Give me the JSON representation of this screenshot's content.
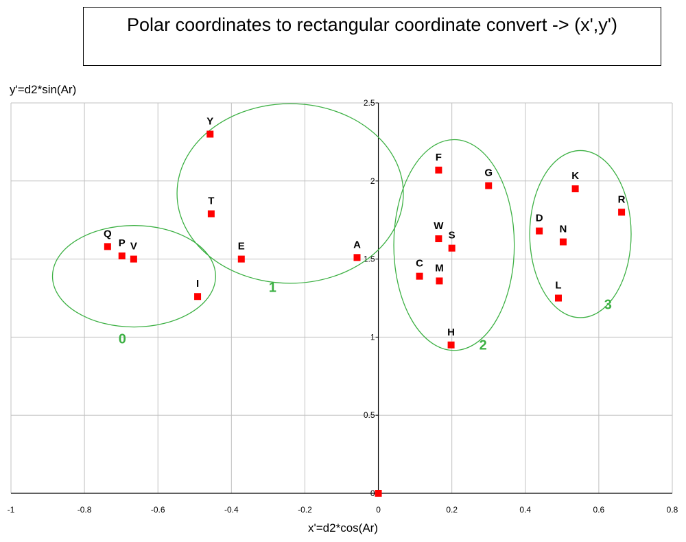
{
  "title": "Polar coordinates to rectangular coordinate convert  -> (x',y')",
  "colors": {
    "point": "#ff0000",
    "cluster": "#3cb043",
    "cluster_label": "#3cb043",
    "grid": "#c0c0c0",
    "axis": "#000000"
  },
  "chart_data": {
    "type": "scatter",
    "xlabel": "x'=d2*cos(Ar)",
    "ylabel": "y'=d2*sin(Ar)",
    "xlim": [
      -1,
      0.8
    ],
    "ylim": [
      0,
      2.5
    ],
    "x_ticks": [
      -1,
      -0.8,
      -0.6,
      -0.4,
      -0.2,
      0,
      0.2,
      0.4,
      0.6,
      0.8
    ],
    "x_tick_labels": [
      "-1",
      "-0.8",
      "-0.6",
      "-0.4",
      "-0.2",
      "0",
      "0.2",
      "0.4",
      "0.6",
      "0.8"
    ],
    "y_ticks": [
      0,
      0.5,
      1,
      1.5,
      2,
      2.5
    ],
    "y_tick_labels": [
      "0",
      "0.5",
      "1",
      "1.5",
      "2",
      "2.5"
    ],
    "grid": true,
    "points": [
      {
        "label": "Q",
        "x": -0.737,
        "y": 1.58
      },
      {
        "label": "P",
        "x": -0.698,
        "y": 1.52
      },
      {
        "label": "V",
        "x": -0.666,
        "y": 1.5
      },
      {
        "label": "I",
        "x": -0.492,
        "y": 1.26
      },
      {
        "label": "Y",
        "x": -0.458,
        "y": 2.3
      },
      {
        "label": "T",
        "x": -0.455,
        "y": 1.79
      },
      {
        "label": "E",
        "x": -0.373,
        "y": 1.5
      },
      {
        "label": "A",
        "x": -0.058,
        "y": 1.51
      },
      {
        "label": "F",
        "x": 0.164,
        "y": 2.07
      },
      {
        "label": "G",
        "x": 0.3,
        "y": 1.97
      },
      {
        "label": "W",
        "x": 0.164,
        "y": 1.63
      },
      {
        "label": "S",
        "x": 0.2,
        "y": 1.57
      },
      {
        "label": "C",
        "x": 0.112,
        "y": 1.39
      },
      {
        "label": "M",
        "x": 0.166,
        "y": 1.36
      },
      {
        "label": "H",
        "x": 0.198,
        "y": 0.95
      },
      {
        "label": "D",
        "x": 0.438,
        "y": 1.68
      },
      {
        "label": "K",
        "x": 0.536,
        "y": 1.95
      },
      {
        "label": "R",
        "x": 0.662,
        "y": 1.8
      },
      {
        "label": "N",
        "x": 0.503,
        "y": 1.61
      },
      {
        "label": "L",
        "x": 0.49,
        "y": 1.25
      },
      {
        "label": "",
        "x": 0.0,
        "y": 0.0
      }
    ],
    "clusters": [
      {
        "label": "0",
        "cx": -0.665,
        "cy": 1.39,
        "rx": 0.222,
        "ry": 0.325
      },
      {
        "label": "1",
        "cx": -0.24,
        "cy": 1.92,
        "rx": 0.308,
        "ry": 0.575
      },
      {
        "label": "2",
        "cx": 0.206,
        "cy": 1.59,
        "rx": 0.164,
        "ry": 0.675
      },
      {
        "label": "3",
        "cx": 0.55,
        "cy": 1.66,
        "rx": 0.138,
        "ry": 0.535
      }
    ]
  }
}
